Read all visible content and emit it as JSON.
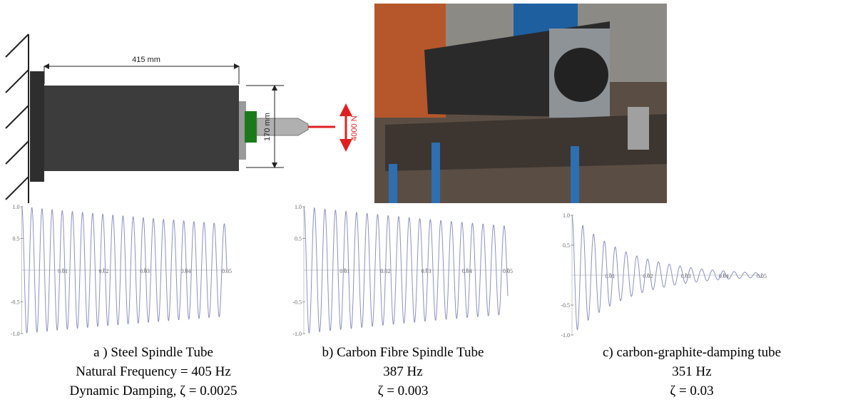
{
  "diagram": {
    "length_label": "415 mm",
    "diameter_label": "170 mm",
    "force_label": "4000 N"
  },
  "charts": [
    {
      "type": "line",
      "xlim": [
        0,
        0.05
      ],
      "ylim": [
        -1,
        1
      ],
      "xticks": [
        0.01,
        0.02,
        0.03,
        0.04,
        0.05
      ],
      "yticks": [
        {
          "value": 1,
          "label": "1.0"
        },
        0.5,
        -0.5,
        {
          "value": -1,
          "label": "-1.0"
        }
      ],
      "color": "#8b8fc4",
      "frequency": 405,
      "damping": 0.0025,
      "caption": [
        "a ) Steel Spindle Tube",
        "Natural Frequency = 405 Hz",
        "Dynamic Damping, ζ = 0.0025"
      ]
    },
    {
      "type": "line",
      "xlim": [
        0,
        0.05
      ],
      "ylim": [
        -1,
        1
      ],
      "xticks": [
        0.01,
        0.02,
        0.03,
        0.04,
        0.05
      ],
      "yticks": [
        {
          "value": 1,
          "label": "1.0"
        },
        0.5,
        -0.5,
        {
          "value": -1,
          "label": "-1.0"
        }
      ],
      "color": "#8b8fc4",
      "frequency": 387,
      "damping": 0.003,
      "caption": [
        "b) Carbon Fibre Spindle Tube",
        "387 Hz",
        "ζ = 0.003"
      ]
    },
    {
      "type": "line",
      "xlim": [
        0,
        0.05
      ],
      "ylim": [
        -1,
        1
      ],
      "xticks": [
        0.01,
        0.02,
        0.03,
        0.04,
        0.05
      ],
      "yticks": [
        {
          "value": 1,
          "label": "1.0"
        },
        0.5,
        -0.5,
        {
          "value": -1,
          "label": "-1.0"
        }
      ],
      "color": "#8b8fc4",
      "frequency": 351,
      "damping": 0.03,
      "caption": [
        "c) carbon-graphite-damping tube",
        "351 Hz",
        "ζ = 0.03"
      ]
    }
  ]
}
